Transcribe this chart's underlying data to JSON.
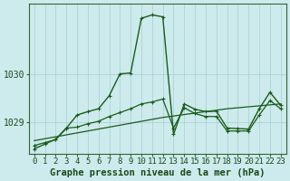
{
  "title": "Graphe pression niveau de la mer (hPa)",
  "hours": [
    0,
    1,
    2,
    3,
    4,
    5,
    6,
    7,
    8,
    9,
    10,
    11,
    12,
    13,
    14,
    15,
    16,
    17,
    18,
    19,
    20,
    21,
    22,
    23
  ],
  "series_jagged": [
    1028.45,
    1028.55,
    1028.65,
    1028.88,
    1029.15,
    1029.22,
    1029.28,
    1029.55,
    1030.0,
    1030.02,
    1031.15,
    1031.22,
    1031.18,
    1028.75,
    1029.38,
    1029.27,
    1029.22,
    1029.23,
    1028.88,
    1028.87,
    1028.86,
    1029.28,
    1029.62,
    1029.35
  ],
  "series_smooth": [
    1028.52,
    1028.58,
    1028.64,
    1028.88,
    1028.9,
    1028.97,
    1029.02,
    1029.12,
    1029.2,
    1029.28,
    1029.38,
    1029.42,
    1029.48,
    1028.88,
    1029.3,
    1029.18,
    1029.12,
    1029.12,
    1028.82,
    1028.82,
    1028.82,
    1029.15,
    1029.45,
    1029.28
  ],
  "series_trend": [
    1028.62,
    1028.66,
    1028.7,
    1028.74,
    1028.78,
    1028.82,
    1028.86,
    1028.9,
    1028.94,
    1028.98,
    1029.02,
    1029.06,
    1029.1,
    1029.13,
    1029.16,
    1029.19,
    1029.22,
    1029.25,
    1029.28,
    1029.3,
    1029.32,
    1029.34,
    1029.36,
    1029.38
  ],
  "ylim": [
    1028.35,
    1031.45
  ],
  "yticks": [
    1029,
    1030
  ],
  "line_color": "#1a5c1a",
  "bg_color": "#cdeaec",
  "grid_color": "#a8cfd2",
  "title_fontsize": 7.5,
  "tick_fontsize": 6.5
}
